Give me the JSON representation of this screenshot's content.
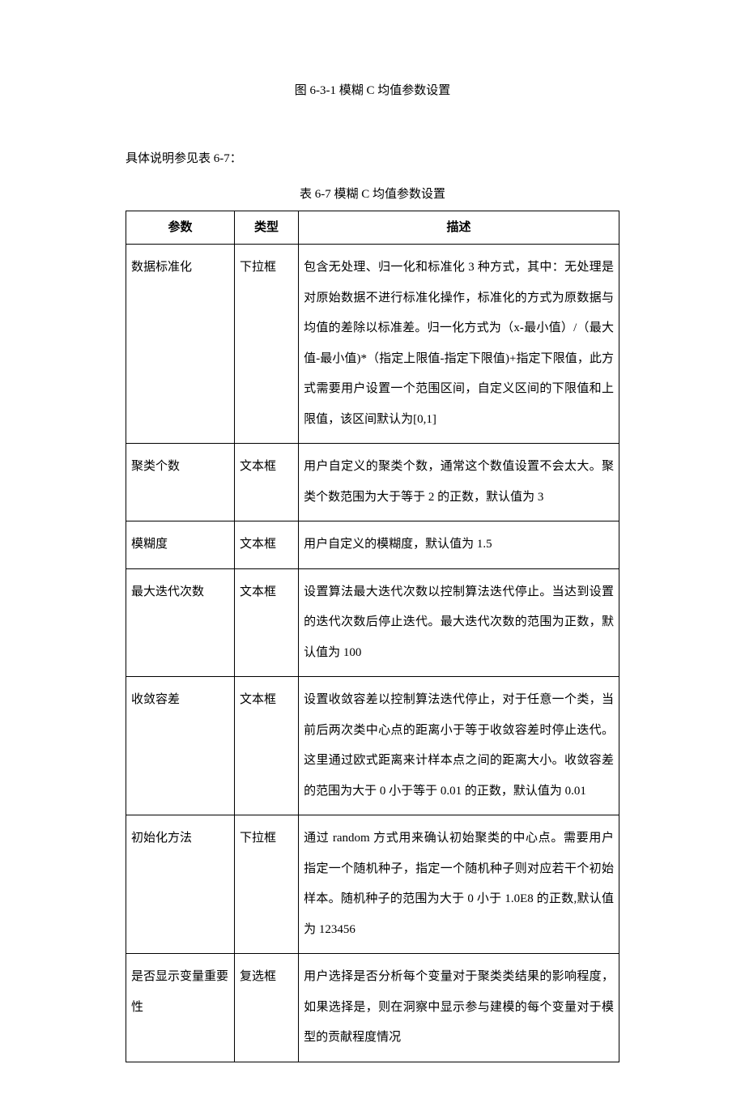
{
  "figure_caption": "图 6-3-1 模糊 C 均值参数设置",
  "intro_text": "具体说明参见表 6-7：",
  "table_caption": "表 6-7 模糊 C 均值参数设置",
  "headers": {
    "param": "参数",
    "type": "类型",
    "desc": "描述"
  },
  "rows": [
    {
      "param": "数据标准化",
      "type": "下拉框",
      "desc": "包含无处理、归一化和标准化 3 种方式，其中：无处理是对原始数据不进行标准化操作，标准化的方式为原数据与均值的差除以标准差。归一化方式为（x-最小值）/（最大值-最小值)*（指定上限值-指定下限值)+指定下限值，此方式需要用户设置一个范围区间，自定义区间的下限值和上限值，该区间默认为[0,1]"
    },
    {
      "param": "聚类个数",
      "type": "文本框",
      "desc": "用户自定义的聚类个数，通常这个数值设置不会太大。聚类个数范围为大于等于 2 的正数，默认值为 3"
    },
    {
      "param": "模糊度",
      "type": "文本框",
      "desc": "用户自定义的模糊度，默认值为 1.5"
    },
    {
      "param": "最大迭代次数",
      "type": "文本框",
      "desc": "设置算法最大迭代次数以控制算法迭代停止。当达到设置的迭代次数后停止迭代。最大迭代次数的范围为正数，默认值为 100"
    },
    {
      "param": "收敛容差",
      "type": "文本框",
      "desc": "设置收敛容差以控制算法迭代停止，对于任意一个类，当前后两次类中心点的距离小于等于收敛容差时停止迭代。这里通过欧式距离来计样本点之间的距离大小。收敛容差的范围为大于 0 小于等于 0.01 的正数，默认值为 0.01"
    },
    {
      "param": "初始化方法",
      "type": "下拉框",
      "desc": "通过 random 方式用来确认初始聚类的中心点。需要用户指定一个随机种子，指定一个随机种子则对应若干个初始样本。随机种子的范围为大于 0 小于 1.0E8 的正数,默认值为 123456"
    },
    {
      "param": "是否显示变量重要性",
      "type": "复选框",
      "desc": "用户选择是否分析每个变量对于聚类类结果的影响程度，如果选择是，则在洞察中显示参与建模的每个变量对于模型的贡献程度情况"
    }
  ]
}
